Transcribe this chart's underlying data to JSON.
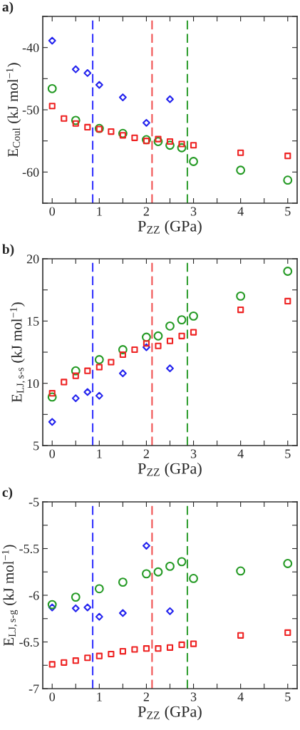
{
  "chart_data": [
    {
      "type": "scatter",
      "annotations": [
        "a)"
      ],
      "xlabel": "P$_{ZZ}$ (GPa)",
      "ylabel": "E$_{Coul}$ (kJ mol$^{−1}$)",
      "xlim": [
        -0.2,
        5.2
      ],
      "xticks": [
        0,
        {
          "value": 0.5,
          "label": null
        },
        1,
        {
          "value": 1.5,
          "label": null
        },
        2,
        {
          "value": 2.5,
          "label": null
        },
        3,
        {
          "value": 3.5,
          "label": null
        },
        4,
        {
          "value": 4.5,
          "label": null
        },
        5
      ],
      "ylim": [
        -65,
        -35
      ],
      "yticks": [
        {
          "value": -65,
          "label": null
        },
        -60,
        {
          "value": -55,
          "label": null
        },
        -50,
        {
          "value": -45,
          "label": null
        },
        -40,
        {
          "value": -35,
          "label": null
        }
      ],
      "grid": false,
      "legend": false,
      "ref_lines": [
        {
          "axis": "x",
          "value": 0.86,
          "color": "#3333ff",
          "line_style": "dashed"
        },
        {
          "axis": "x",
          "value": 2.12,
          "color": "#f05050",
          "line_style": "dashed"
        },
        {
          "axis": "x",
          "value": 2.87,
          "color": "#33a033",
          "line_style": "dashed"
        }
      ],
      "series": [
        {
          "color": "#2222ee",
          "marker": "diamond",
          "x": [
            0,
            0.5,
            0.75,
            1,
            1.5,
            2,
            2.5
          ],
          "values": [
            -38.9,
            -43.5,
            -44.1,
            -46.0,
            -48.0,
            -52.1,
            -48.3
          ]
        },
        {
          "color": "#229922",
          "marker": "circle",
          "x": [
            0,
            0.5,
            1,
            1.5,
            2,
            2.25,
            2.5,
            2.75,
            3,
            4,
            5
          ],
          "values": [
            -46.6,
            -51.7,
            -53.0,
            -53.8,
            -54.8,
            -55.1,
            -55.7,
            -56.1,
            -58.3,
            -59.7,
            -61.3
          ]
        },
        {
          "color": "#ee2222",
          "marker": "square",
          "x": [
            0,
            0.25,
            0.5,
            0.75,
            1,
            1.25,
            1.5,
            1.75,
            2,
            2.25,
            2.5,
            2.75,
            3,
            4,
            5
          ],
          "values": [
            -49.4,
            -51.4,
            -52.2,
            -52.8,
            -53.1,
            -53.5,
            -54.1,
            -54.5,
            -55.0,
            -54.7,
            -55.1,
            -55.5,
            -55.7,
            -56.9,
            -57.4
          ]
        }
      ]
    },
    {
      "type": "scatter",
      "annotations": [
        "b)"
      ],
      "xlabel": "P$_{ZZ}$ (GPa)",
      "ylabel": "E$_{LJ,s-s}$ (kJ mol$^{−1}$)",
      "xlim": [
        -0.2,
        5.2
      ],
      "xticks": [
        0,
        {
          "value": 0.5,
          "label": null
        },
        1,
        {
          "value": 1.5,
          "label": null
        },
        2,
        {
          "value": 2.5,
          "label": null
        },
        3,
        {
          "value": 3.5,
          "label": null
        },
        4,
        {
          "value": 4.5,
          "label": null
        },
        5
      ],
      "ylim": [
        5,
        20
      ],
      "yticks": [
        5,
        {
          "value": 7.5,
          "label": null
        },
        10,
        {
          "value": 12.5,
          "label": null
        },
        15,
        {
          "value": 17.5,
          "label": null
        },
        20
      ],
      "grid": false,
      "legend": false,
      "ref_lines": [
        {
          "axis": "x",
          "value": 0.86,
          "color": "#3333ff",
          "line_style": "dashed"
        },
        {
          "axis": "x",
          "value": 2.12,
          "color": "#f05050",
          "line_style": "dashed"
        },
        {
          "axis": "x",
          "value": 2.87,
          "color": "#33a033",
          "line_style": "dashed"
        }
      ],
      "series": [
        {
          "color": "#2222ee",
          "marker": "diamond",
          "x": [
            0,
            0.5,
            0.75,
            1,
            1.5,
            2,
            2.5
          ],
          "values": [
            6.9,
            8.8,
            9.3,
            9.0,
            10.8,
            12.9,
            11.2
          ]
        },
        {
          "color": "#229922",
          "marker": "circle",
          "x": [
            0,
            0.5,
            1,
            1.5,
            2,
            2.25,
            2.5,
            2.75,
            3,
            4,
            5
          ],
          "values": [
            8.9,
            11.0,
            11.9,
            12.7,
            13.7,
            13.8,
            14.6,
            15.1,
            15.4,
            17.0,
            19.0
          ]
        },
        {
          "color": "#ee2222",
          "marker": "square",
          "x": [
            0,
            0.25,
            0.5,
            0.75,
            1,
            1.25,
            1.5,
            1.75,
            2,
            2.25,
            2.5,
            2.75,
            3,
            4,
            5
          ],
          "values": [
            9.2,
            10.1,
            10.6,
            11.0,
            11.3,
            11.7,
            12.3,
            12.7,
            13.2,
            13.0,
            13.4,
            13.8,
            14.1,
            15.9,
            16.6
          ]
        }
      ]
    },
    {
      "type": "scatter",
      "annotations": [
        "c)"
      ],
      "xlabel": "P$_{ZZ}$ (GPa)",
      "ylabel": "E$_{LJ,s-g}$ (kJ mol$^{−1}$)",
      "xlim": [
        -0.2,
        5.2
      ],
      "xticks": [
        0,
        {
          "value": 0.5,
          "label": null
        },
        1,
        {
          "value": 1.5,
          "label": null
        },
        2,
        {
          "value": 2.5,
          "label": null
        },
        3,
        {
          "value": 3.5,
          "label": null
        },
        4,
        {
          "value": 4.5,
          "label": null
        },
        5
      ],
      "ylim": [
        -7,
        -5
      ],
      "yticks": [
        -7,
        {
          "value": -6.75,
          "label": null
        },
        -6.5,
        {
          "value": -6.25,
          "label": null
        },
        -6,
        {
          "value": -5.75,
          "label": null
        },
        -5.5,
        {
          "value": -5.25,
          "label": null
        },
        -5
      ],
      "grid": false,
      "legend": false,
      "ref_lines": [
        {
          "axis": "x",
          "value": 0.86,
          "color": "#3333ff",
          "line_style": "dashed"
        },
        {
          "axis": "x",
          "value": 2.12,
          "color": "#f05050",
          "line_style": "dashed"
        },
        {
          "axis": "x",
          "value": 2.87,
          "color": "#33a033",
          "line_style": "dashed"
        }
      ],
      "series": [
        {
          "color": "#2222ee",
          "marker": "diamond",
          "x": [
            0,
            0.5,
            0.75,
            1,
            1.5,
            2,
            2.5
          ],
          "values": [
            -6.13,
            -6.14,
            -6.13,
            -6.23,
            -6.19,
            -5.47,
            -6.17
          ]
        },
        {
          "color": "#229922",
          "marker": "circle",
          "x": [
            0,
            0.5,
            1,
            1.5,
            2,
            2.25,
            2.5,
            2.75,
            3,
            4,
            5
          ],
          "values": [
            -6.1,
            -6.02,
            -5.93,
            -5.86,
            -5.77,
            -5.75,
            -5.69,
            -5.64,
            -5.82,
            -5.74,
            -5.66
          ]
        },
        {
          "color": "#ee2222",
          "marker": "square",
          "x": [
            0,
            0.25,
            0.5,
            0.75,
            1,
            1.25,
            1.5,
            1.75,
            2,
            2.25,
            2.5,
            2.75,
            3,
            4,
            5
          ],
          "values": [
            -6.74,
            -6.72,
            -6.7,
            -6.67,
            -6.65,
            -6.63,
            -6.6,
            -6.58,
            -6.57,
            -6.57,
            -6.56,
            -6.53,
            -6.52,
            -6.43,
            -6.4
          ]
        }
      ]
    }
  ]
}
